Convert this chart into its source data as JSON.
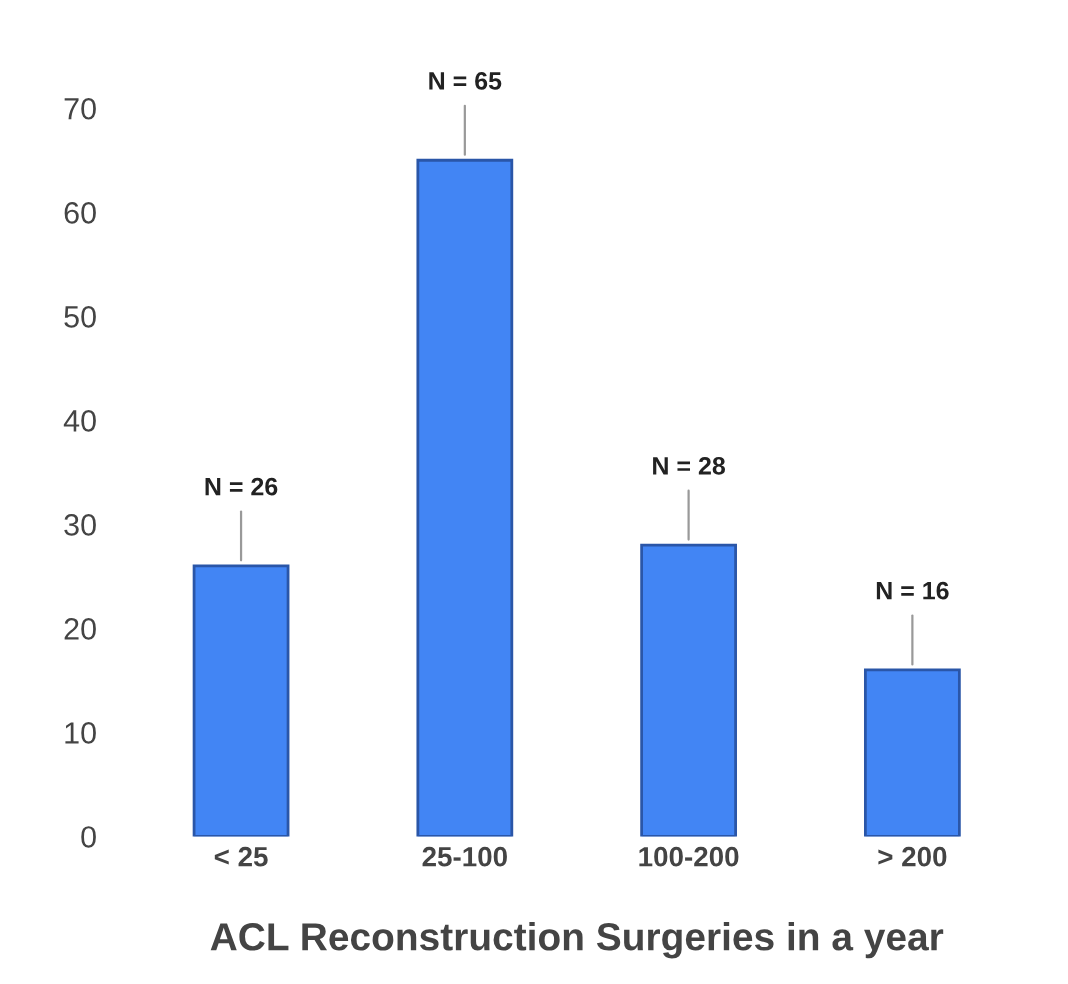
{
  "chart_data": {
    "type": "bar",
    "xlabel": "ACL Reconstruction Surgeries in a year",
    "categories": [
      "< 25",
      "25-100",
      "100-200",
      "> 200"
    ],
    "values": [
      26,
      65,
      28,
      16
    ],
    "value_labels": [
      "N = 26",
      "N = 65",
      "N = 28",
      "N = 16"
    ],
    "color": "#4285f4",
    "ylim": [
      0,
      70
    ],
    "yticks": [
      0,
      10,
      20,
      30,
      40,
      50,
      60,
      70
    ],
    "grid": false
  }
}
